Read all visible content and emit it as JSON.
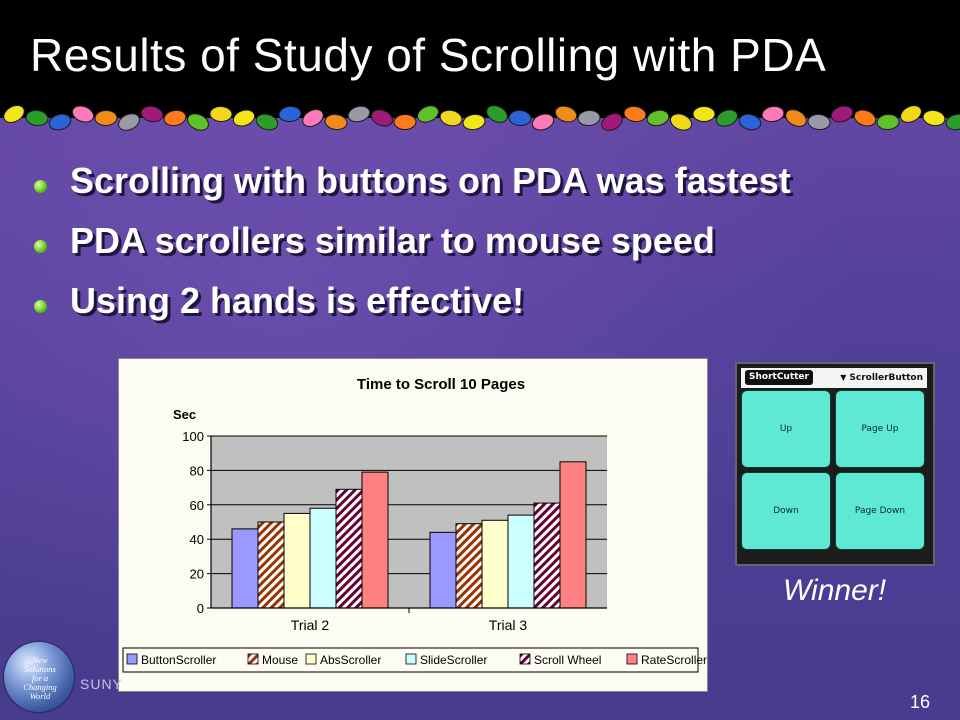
{
  "slide": {
    "title": "Results of Study of Scrolling with PDA",
    "bullets": [
      "Scrolling with buttons on PDA was fastest",
      "PDA scrollers similar to mouse speed",
      "Using 2 hands is effective!"
    ],
    "winner_caption": "Winner!",
    "footer": "SUNY",
    "page_number": "16",
    "logo_text": [
      "New",
      "Solutions",
      "for a",
      "Changing",
      "World"
    ],
    "colors": {
      "title_bar": "#000000",
      "background": "#55419a",
      "bullet_dot": "#5ac81e",
      "pda_button": "#5fe8d4"
    },
    "decorative_border": "candy-bead-border"
  },
  "pda": {
    "app_name": "ShortCutter",
    "dropdown_label": "ScrollerButton",
    "buttons": {
      "up": "Up",
      "page_up": "Page Up",
      "down": "Down",
      "page_down": "Page Down"
    }
  },
  "chart_data": {
    "type": "bar",
    "title": "Time to Scroll 10 Pages",
    "ylabel": "Sec",
    "xlabel": "",
    "ylim": [
      0,
      100
    ],
    "yticks": [
      0,
      20,
      40,
      60,
      80,
      100
    ],
    "grid": true,
    "legend_position": "bottom",
    "categories": [
      "Trial 2",
      "Trial 3"
    ],
    "series": [
      {
        "name": "ButtonScroller",
        "values": [
          46,
          44
        ],
        "color": "#9999ff",
        "pattern": "solid"
      },
      {
        "name": "Mouse",
        "values": [
          50,
          49
        ],
        "color": "#993300",
        "pattern": "diagonal-hatch"
      },
      {
        "name": "AbsScroller",
        "values": [
          55,
          51
        ],
        "color": "#ffffcc",
        "pattern": "solid"
      },
      {
        "name": "SlideScroller",
        "values": [
          58,
          54
        ],
        "color": "#ccffff",
        "pattern": "solid"
      },
      {
        "name": "Scroll Wheel",
        "values": [
          69,
          61
        ],
        "color": "#660033",
        "pattern": "diagonal-hatch"
      },
      {
        "name": "RateScroller",
        "values": [
          79,
          85
        ],
        "color": "#ff8080",
        "pattern": "solid"
      }
    ]
  }
}
